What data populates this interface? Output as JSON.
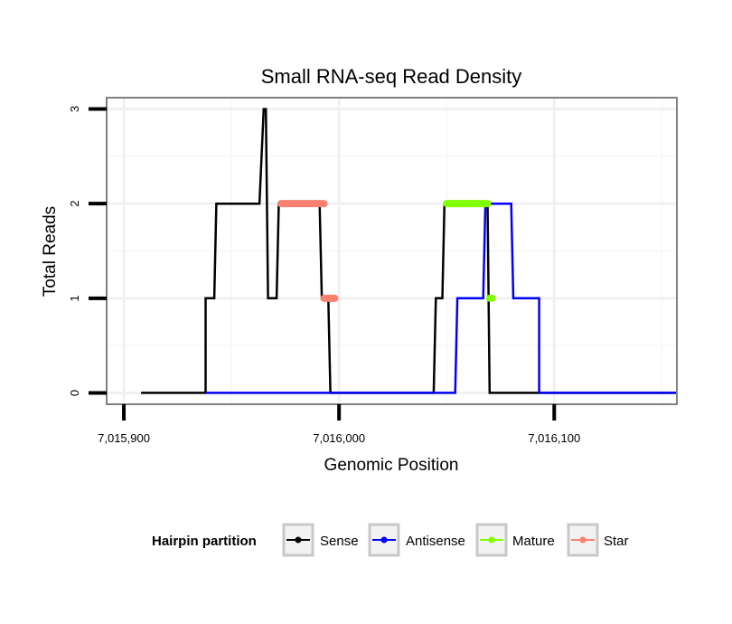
{
  "chart_data": {
    "type": "line",
    "title": "Small RNA-seq Read Density",
    "xlabel": "Genomic Position",
    "ylabel": "Total Reads",
    "xlim": [
      7015892,
      7016157
    ],
    "ylim": [
      -0.12,
      3.12
    ],
    "x_ticks": [
      7015900,
      7016000,
      7016100
    ],
    "x_tick_labels": [
      "7,015,900",
      "7,016,000",
      "7,016,100"
    ],
    "y_ticks": [
      0,
      1,
      2,
      3
    ],
    "y_tick_labels": [
      "0",
      "1",
      "2",
      "3"
    ],
    "grid": true,
    "legend": {
      "title": "Hairpin partition",
      "position": "bottom",
      "entries": [
        "Sense",
        "Antisense",
        "Mature",
        "Star"
      ]
    },
    "series": [
      {
        "name": "Sense",
        "color": "#000000",
        "points": [
          [
            7015908,
            0
          ],
          [
            7015938,
            0
          ],
          [
            7015938,
            1
          ],
          [
            7015942,
            1
          ],
          [
            7015943,
            2
          ],
          [
            7015963,
            2
          ],
          [
            7015965,
            3
          ],
          [
            7015966,
            3
          ],
          [
            7015967,
            1
          ],
          [
            7015971,
            1
          ],
          [
            7015972,
            2
          ],
          [
            7015991,
            2
          ],
          [
            7015992,
            1
          ],
          [
            7015995,
            1
          ],
          [
            7015996,
            0
          ],
          [
            7016044,
            0
          ],
          [
            7016045,
            1
          ],
          [
            7016048,
            1
          ],
          [
            7016049,
            2
          ],
          [
            7016069,
            2
          ],
          [
            7016070,
            0
          ],
          [
            7016157,
            0
          ]
        ]
      },
      {
        "name": "Antisense",
        "color": "#0000ff",
        "points": [
          [
            7015938,
            0
          ],
          [
            7016054,
            0
          ],
          [
            7016055,
            1
          ],
          [
            7016067,
            1
          ],
          [
            7016068,
            2
          ],
          [
            7016080,
            2
          ],
          [
            7016081,
            1
          ],
          [
            7016093,
            1
          ],
          [
            7016093,
            0
          ],
          [
            7016157,
            0
          ]
        ]
      },
      {
        "name": "Mature",
        "color": "#7fff00",
        "segments": [
          [
            [
              7016050,
              2
            ],
            [
              7016069,
              2
            ]
          ],
          [
            [
              7016070,
              1
            ],
            [
              7016071,
              1
            ]
          ]
        ]
      },
      {
        "name": "Star",
        "color": "#fa8072",
        "segments": [
          [
            [
              7015973,
              2
            ],
            [
              7015993,
              2
            ]
          ],
          [
            [
              7015993,
              1
            ],
            [
              7015998,
              1
            ]
          ]
        ]
      }
    ]
  }
}
